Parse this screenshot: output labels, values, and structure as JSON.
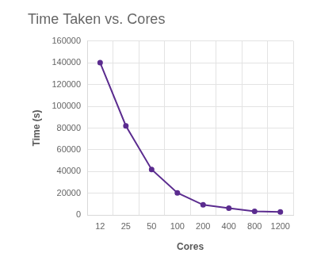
{
  "chart_data": {
    "type": "line",
    "title": "Time Taken vs. Cores",
    "x_label": "Cores",
    "y_label": "Time (s)",
    "categories": [
      "12",
      "25",
      "50",
      "100",
      "200",
      "400",
      "800",
      "1200"
    ],
    "values": [
      140000,
      82000,
      42000,
      20500,
      9500,
      6500,
      3500,
      3000
    ],
    "color": "#5b2c8f",
    "marker": "circle",
    "line_style": "solid",
    "ylim": [
      0,
      160000
    ],
    "yticks": [
      0,
      20000,
      40000,
      60000,
      80000,
      100000,
      120000,
      140000,
      160000
    ],
    "grid": true
  }
}
